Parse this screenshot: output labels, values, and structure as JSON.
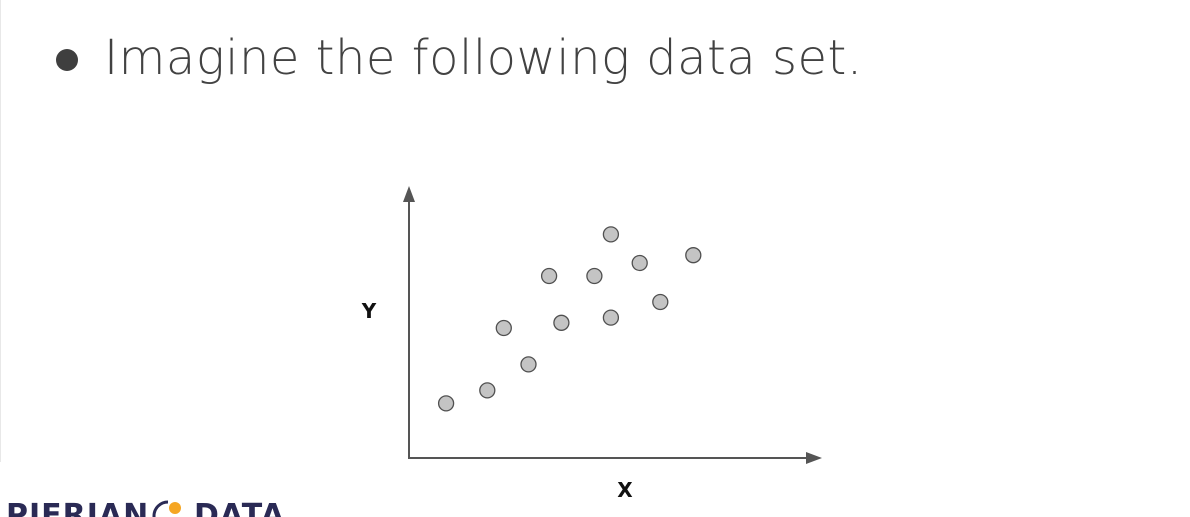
{
  "slide": {
    "bullet_text": "Imagine the following data set."
  },
  "chart_data": {
    "type": "scatter",
    "xlabel": "X",
    "ylabel": "Y",
    "xlim": [
      0,
      10
    ],
    "ylim": [
      0,
      10
    ],
    "grid": false,
    "ticks": false,
    "points": [
      {
        "x": 0.9,
        "y": 2.1
      },
      {
        "x": 1.9,
        "y": 2.6
      },
      {
        "x": 2.3,
        "y": 5.0
      },
      {
        "x": 2.9,
        "y": 3.6
      },
      {
        "x": 3.4,
        "y": 7.0
      },
      {
        "x": 3.7,
        "y": 5.2
      },
      {
        "x": 4.5,
        "y": 7.0
      },
      {
        "x": 4.9,
        "y": 5.4
      },
      {
        "x": 4.9,
        "y": 8.6
      },
      {
        "x": 5.6,
        "y": 7.5
      },
      {
        "x": 6.1,
        "y": 6.0
      },
      {
        "x": 6.9,
        "y": 7.8
      }
    ],
    "colors": {
      "point_fill": "#c4c4c4",
      "point_stroke": "#505050",
      "axis": "#555555"
    }
  },
  "logo": {
    "left_text": "PIERIAN",
    "right_text": "DATA",
    "colors": {
      "text": "#2a2a55",
      "accent": "#f5a623"
    }
  }
}
